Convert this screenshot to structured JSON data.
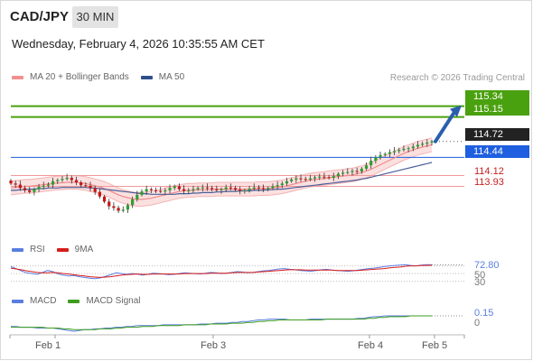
{
  "header": {
    "pair": "CAD/JPY",
    "timeframe": "30 MIN",
    "datetime": "Wednesday, February 4, 2026 10:35:55 AM CET",
    "credit": "Research © 2026 Trading Central"
  },
  "legend_main": [
    {
      "label": "MA 20 + Bollinger Bands",
      "color": "#f09090"
    },
    {
      "label": "MA 50",
      "color": "#2e4f8a"
    }
  ],
  "legend_rsi": [
    {
      "label": "RSI",
      "color": "#5a7ee0"
    },
    {
      "label": "9MA",
      "color": "#d81c1c"
    }
  ],
  "legend_macd": [
    {
      "label": "MACD",
      "color": "#5a7ee0"
    },
    {
      "label": "MACD Signal",
      "color": "#3f9d1e"
    }
  ],
  "colors": {
    "up": "#2e9e2e",
    "down": "#c41616",
    "target": "#4aa10f",
    "pivot": "#1f5fe0",
    "support": "#e06a6a",
    "arrow": "#2a5fad",
    "price_tag": "#222222"
  },
  "chart_data": [
    {
      "type": "candlestick",
      "title": "CAD/JPY",
      "x_ticks": [
        "Feb 1",
        "Feb 3",
        "Feb 4",
        "Feb 5"
      ],
      "ylim": [
        113.0,
        115.7
      ],
      "levels": [
        {
          "value": 115.34,
          "label": "115.34",
          "kind": "target"
        },
        {
          "value": 115.15,
          "label": "115.15",
          "kind": "target"
        },
        {
          "value": 114.72,
          "label": "114.72",
          "kind": "last_price"
        },
        {
          "value": 114.44,
          "label": "114.44",
          "kind": "pivot"
        },
        {
          "value": 114.12,
          "label": "114.12",
          "kind": "support"
        },
        {
          "value": 113.93,
          "label": "113.93",
          "kind": "support"
        }
      ],
      "close": [
        113.98,
        113.96,
        113.9,
        113.86,
        113.83,
        113.88,
        113.92,
        113.94,
        113.96,
        114.02,
        114.04,
        114.06,
        114.08,
        114.04,
        114.0,
        113.95,
        113.94,
        113.9,
        113.83,
        113.75,
        113.66,
        113.58,
        113.55,
        113.5,
        113.52,
        113.6,
        113.7,
        113.78,
        113.84,
        113.88,
        113.86,
        113.85,
        113.84,
        113.86,
        113.9,
        113.93,
        113.88,
        113.85,
        113.86,
        113.88,
        113.9,
        113.91,
        113.9,
        113.88,
        113.86,
        113.88,
        113.91,
        113.9,
        113.87,
        113.85,
        113.86,
        113.89,
        113.91,
        113.9,
        113.88,
        113.9,
        113.93,
        113.95,
        113.98,
        114.02,
        114.05,
        114.07,
        114.06,
        114.05,
        114.07,
        114.09,
        114.1,
        114.09,
        114.08,
        114.11,
        114.15,
        114.17,
        114.18,
        114.2,
        114.19,
        114.24,
        114.3,
        114.38,
        114.44,
        114.48,
        114.5,
        114.53,
        114.55,
        114.57,
        114.59,
        114.6,
        114.63,
        114.66,
        114.68,
        114.7,
        114.72
      ],
      "ma20": [
        113.9,
        113.91,
        113.92,
        113.93,
        113.93,
        113.94,
        113.95,
        113.96,
        113.97,
        113.98,
        113.99,
        113.99,
        114.0,
        114.0,
        114.0,
        113.99,
        113.98,
        113.96,
        113.94,
        113.92,
        113.89,
        113.86,
        113.82,
        113.78,
        113.75,
        113.73,
        113.71,
        113.7,
        113.7,
        113.71,
        113.72,
        113.74,
        113.76,
        113.78,
        113.8,
        113.82,
        113.84,
        113.85,
        113.86,
        113.86,
        113.87,
        113.87,
        113.87,
        113.87,
        113.88,
        113.88,
        113.88,
        113.88,
        113.88,
        113.88,
        113.88,
        113.88,
        113.88,
        113.89,
        113.89,
        113.89,
        113.9,
        113.91,
        113.92,
        113.94,
        113.96,
        113.98,
        114.0,
        114.02,
        114.04,
        114.05,
        114.06,
        114.07,
        114.08,
        114.09,
        114.1,
        114.11,
        114.12,
        114.13,
        114.15,
        114.17,
        114.2,
        114.23,
        114.27,
        114.31,
        114.35,
        114.39,
        114.43,
        114.47,
        114.51,
        114.54,
        114.57,
        114.6,
        114.62,
        114.64,
        114.66
      ],
      "ma50": [
        113.86,
        113.86,
        113.87,
        113.87,
        113.88,
        113.88,
        113.89,
        113.89,
        113.9,
        113.9,
        113.9,
        113.91,
        113.91,
        113.91,
        113.91,
        113.91,
        113.91,
        113.9,
        113.9,
        113.89,
        113.88,
        113.87,
        113.86,
        113.85,
        113.84,
        113.83,
        113.82,
        113.81,
        113.8,
        113.8,
        113.79,
        113.79,
        113.79,
        113.79,
        113.79,
        113.79,
        113.8,
        113.8,
        113.8,
        113.81,
        113.81,
        113.82,
        113.82,
        113.82,
        113.83,
        113.83,
        113.84,
        113.84,
        113.84,
        113.85,
        113.85,
        113.85,
        113.86,
        113.86,
        113.86,
        113.87,
        113.87,
        113.88,
        113.88,
        113.89,
        113.9,
        113.91,
        113.92,
        113.93,
        113.94,
        113.95,
        113.96,
        113.97,
        113.98,
        113.99,
        114.0,
        114.01,
        114.02,
        114.03,
        114.04,
        114.06,
        114.07,
        114.09,
        114.11,
        114.13,
        114.15,
        114.17,
        114.19,
        114.21,
        114.23,
        114.25,
        114.27,
        114.29,
        114.31,
        114.33,
        114.35
      ]
    },
    {
      "type": "line",
      "title": "RSI",
      "ylim": [
        20,
        90
      ],
      "levels": [
        {
          "value": 72.8,
          "label": "72.80"
        },
        {
          "value": 50,
          "label": "50"
        },
        {
          "value": 30,
          "label": "30"
        }
      ],
      "series": [
        {
          "name": "RSI",
          "values": [
            68,
            63,
            57,
            52,
            50,
            48,
            53,
            58,
            55,
            49,
            46,
            44,
            45,
            42,
            40,
            38,
            37,
            39,
            43,
            47,
            52,
            50,
            48,
            50,
            49,
            46,
            48,
            51,
            50,
            49,
            47,
            48,
            50,
            52,
            51,
            50,
            49,
            51,
            53,
            52,
            50,
            51,
            53,
            55,
            54,
            52,
            53,
            55,
            57,
            58,
            60,
            62,
            63,
            61,
            60,
            58,
            57,
            56,
            58,
            60,
            61,
            59,
            58,
            57,
            56,
            57,
            59,
            61,
            63,
            64,
            66,
            68,
            70,
            71,
            72,
            73,
            71,
            70,
            72,
            73,
            72.8
          ]
        },
        {
          "name": "9MA",
          "values": [
            64,
            62,
            60,
            57,
            55,
            53,
            52,
            52,
            53,
            52,
            50,
            49,
            47,
            45,
            44,
            42,
            41,
            40,
            41,
            42,
            44,
            46,
            47,
            48,
            49,
            48,
            48,
            49,
            49,
            49,
            49,
            49,
            49,
            50,
            50,
            50,
            50,
            50,
            51,
            51,
            51,
            51,
            52,
            53,
            53,
            53,
            53,
            54,
            55,
            56,
            57,
            58,
            59,
            60,
            60,
            60,
            59,
            59,
            59,
            59,
            59,
            59,
            58,
            58,
            58,
            58,
            58,
            59,
            60,
            61,
            62,
            63,
            65,
            66,
            67,
            69,
            70,
            70,
            71,
            71,
            71.5
          ]
        }
      ]
    },
    {
      "type": "line",
      "title": "MACD",
      "ylim": [
        -0.05,
        0.25
      ],
      "levels": [
        {
          "value": 0.15,
          "label": "0.15"
        },
        {
          "value": 0,
          "label": "0"
        }
      ],
      "series": [
        {
          "name": "MACD",
          "values": [
            0.02,
            0.02,
            0.01,
            0.01,
            0.01,
            0.0,
            0.0,
            0.0,
            0.0,
            -0.01,
            -0.02,
            -0.03,
            -0.04,
            -0.03,
            -0.02,
            -0.02,
            -0.01,
            -0.01,
            0.0,
            0.0,
            0.01,
            0.01,
            0.02,
            0.02,
            0.03,
            0.03,
            0.03,
            0.03,
            0.03,
            0.04,
            0.04,
            0.04,
            0.04,
            0.04,
            0.04,
            0.04,
            0.05,
            0.05,
            0.05,
            0.06,
            0.06,
            0.06,
            0.07,
            0.07,
            0.08,
            0.08,
            0.09,
            0.1,
            0.1,
            0.11,
            0.11,
            0.11,
            0.11,
            0.1,
            0.1,
            0.1,
            0.1,
            0.11,
            0.11,
            0.11,
            0.11,
            0.11,
            0.11,
            0.11,
            0.11,
            0.11,
            0.12,
            0.12,
            0.13,
            0.14,
            0.14,
            0.15,
            0.15,
            0.15,
            0.15,
            0.15,
            0.15,
            0.15,
            0.15,
            0.15,
            0.15
          ]
        },
        {
          "name": "MACD Signal",
          "values": [
            0.01,
            0.01,
            0.01,
            0.01,
            0.01,
            0.01,
            0.01,
            0.0,
            0.0,
            0.0,
            -0.01,
            -0.01,
            -0.02,
            -0.02,
            -0.02,
            -0.02,
            -0.02,
            -0.01,
            -0.01,
            -0.01,
            0.0,
            0.0,
            0.01,
            0.01,
            0.01,
            0.02,
            0.02,
            0.02,
            0.03,
            0.03,
            0.03,
            0.03,
            0.03,
            0.04,
            0.04,
            0.04,
            0.04,
            0.04,
            0.05,
            0.05,
            0.05,
            0.05,
            0.06,
            0.06,
            0.06,
            0.07,
            0.07,
            0.08,
            0.08,
            0.09,
            0.09,
            0.1,
            0.1,
            0.1,
            0.1,
            0.1,
            0.1,
            0.1,
            0.1,
            0.1,
            0.11,
            0.11,
            0.11,
            0.11,
            0.11,
            0.11,
            0.11,
            0.11,
            0.12,
            0.12,
            0.13,
            0.13,
            0.14,
            0.14,
            0.14,
            0.14,
            0.15,
            0.15,
            0.15,
            0.15,
            0.15
          ]
        }
      ]
    }
  ]
}
